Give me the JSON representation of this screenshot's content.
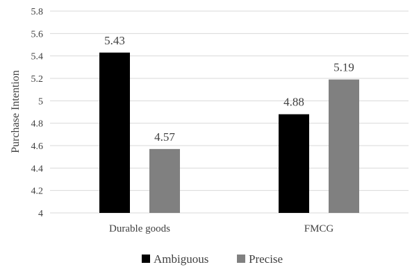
{
  "chart_data": {
    "type": "bar",
    "title": "",
    "xlabel": "",
    "ylabel": "Purchase Intention",
    "categories": [
      "Durable goods",
      "FMCG"
    ],
    "series": [
      {
        "name": "Ambiguous",
        "values": [
          5.43,
          4.88
        ],
        "labels": [
          "5.43",
          "4.88"
        ],
        "color": "#000000"
      },
      {
        "name": "Precise",
        "values": [
          4.57,
          5.19
        ],
        "labels": [
          "4.57",
          "5.19"
        ],
        "color": "#808080"
      }
    ],
    "ylim": [
      4,
      5.8
    ],
    "yticks": [
      "4",
      "4.2",
      "4.4",
      "4.6",
      "4.8",
      "5",
      "5.2",
      "5.4",
      "5.6",
      "5.8"
    ],
    "grid": true,
    "legend_position": "bottom"
  }
}
